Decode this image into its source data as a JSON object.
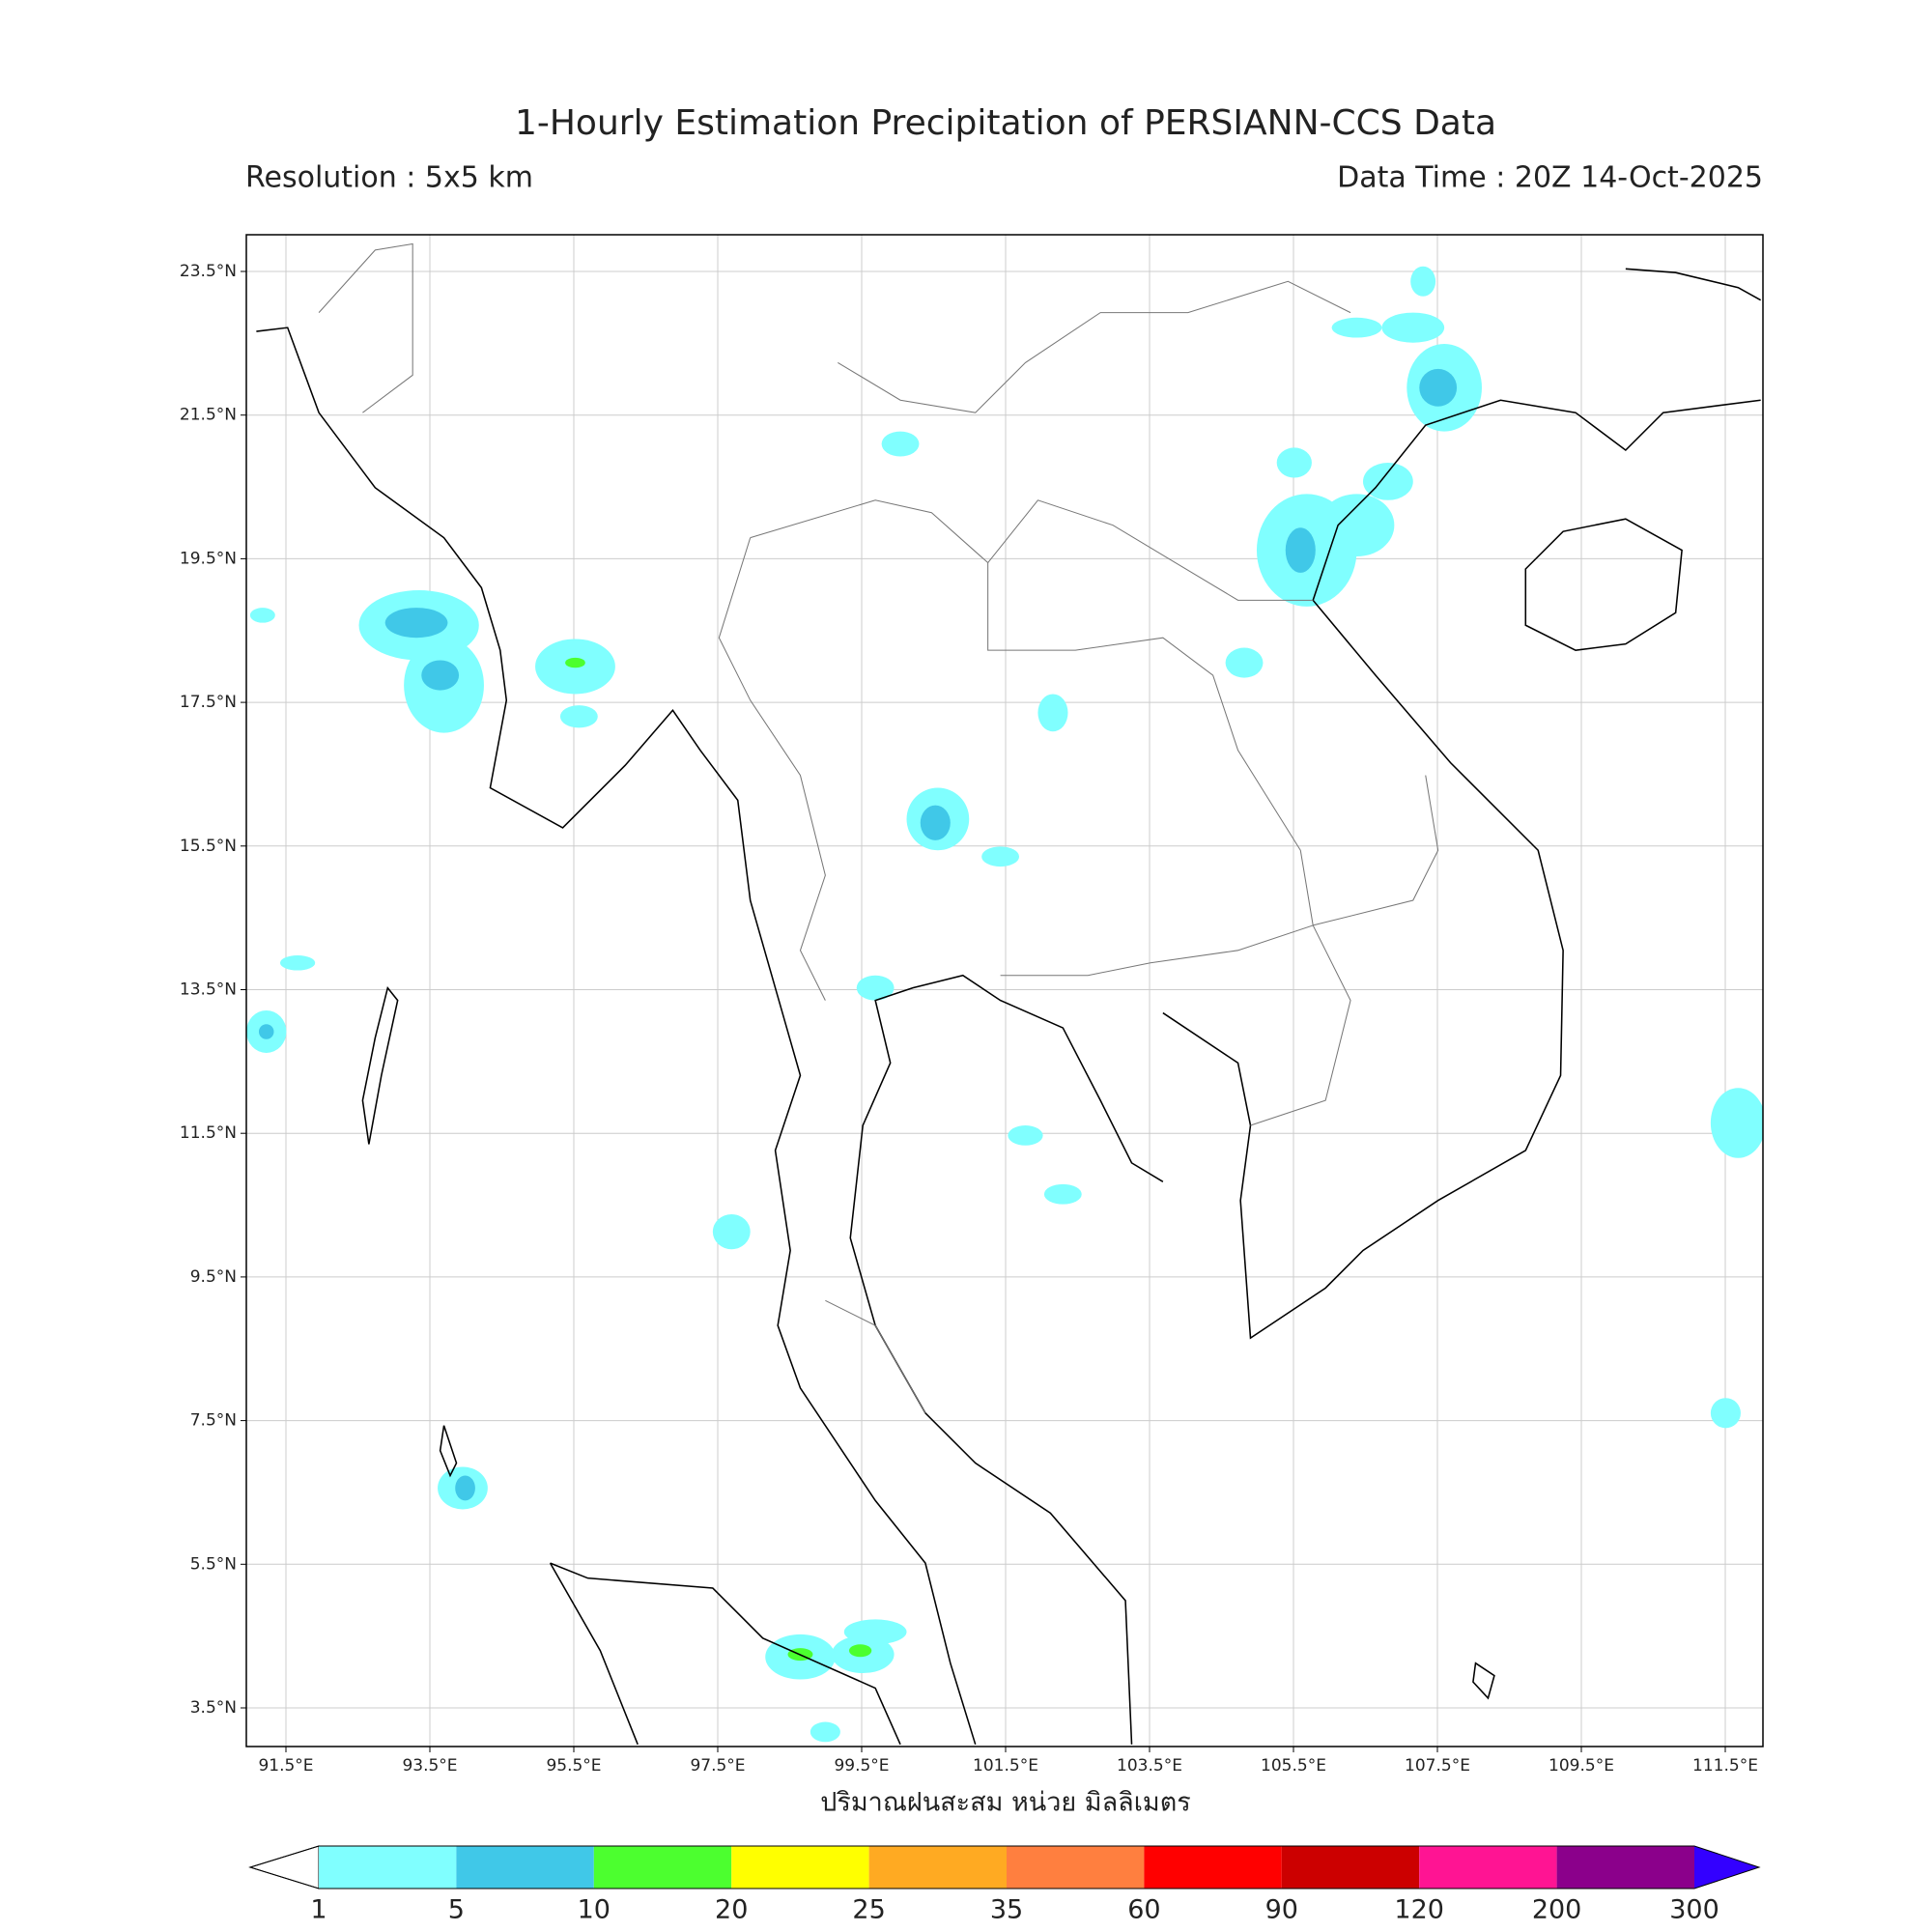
{
  "header": {
    "title": "1-Hourly Estimation Precipitation of PERSIANN-CCS Data",
    "resolution": "Resolution : 5x5 km",
    "data_time": "Data Time : 20Z 14-Oct-2025"
  },
  "map": {
    "lat_ticks": [
      "23.5°N",
      "21.5°N",
      "19.5°N",
      "17.5°N",
      "15.5°N",
      "13.5°N",
      "11.5°N",
      "9.5°N",
      "7.5°N",
      "5.5°N",
      "3.5°N"
    ],
    "lon_ticks": [
      "91.5°E",
      "93.5°E",
      "95.5°E",
      "97.5°E",
      "99.5°E",
      "101.5°E",
      "103.5°E",
      "105.5°E",
      "107.5°E",
      "109.5°E",
      "111.5°E"
    ],
    "xlabel": "ปริมาณฝนสะสม หน่วย มิลลิเมตร"
  },
  "colorbar": {
    "levels": [
      1,
      5,
      10,
      20,
      25,
      35,
      60,
      90,
      120,
      200,
      300
    ],
    "colors": [
      "#80ffff",
      "#40c8e8",
      "#4cff2f",
      "#ffff00",
      "#ffaa22",
      "#ff7f3f",
      "#ff0000",
      "#cc0000",
      "#ff1493",
      "#8b008b",
      "#3300ff"
    ]
  }
}
